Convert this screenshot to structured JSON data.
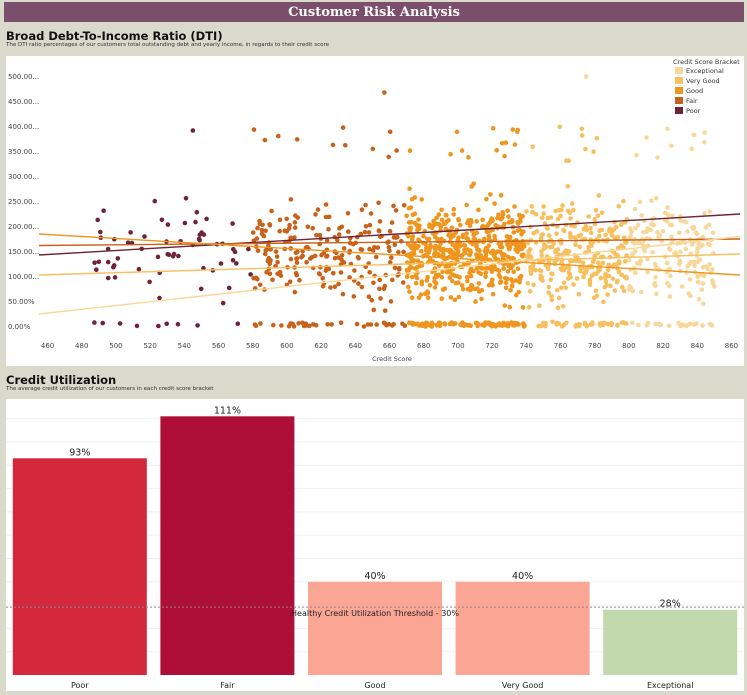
{
  "page": {
    "title": "Customer Risk Analysis"
  },
  "dti": {
    "title": "Broad Debt-To-Income Ratio (DTI)",
    "subtitle": "The DTI ratio percentages of our customers total outstanding debt and yearly income, in regards to their credit score"
  },
  "utilization": {
    "title": "Credit Utilization",
    "subtitle": "The average credit utilization of our customers in each credit score bracket"
  },
  "chart_data": [
    {
      "type": "scatter",
      "title": "Broad Debt-To-Income Ratio (DTI)",
      "xlabel": "Credit Score",
      "ylabel": "",
      "xlim": [
        455,
        865
      ],
      "ylim": [
        -15,
        525
      ],
      "x_ticks": [
        460,
        480,
        500,
        520,
        540,
        560,
        580,
        600,
        620,
        640,
        660,
        680,
        700,
        720,
        740,
        760,
        780,
        800,
        820,
        840,
        860
      ],
      "y_ticks": [
        0,
        50,
        100,
        150,
        200,
        250,
        300,
        350,
        400,
        450,
        500
      ],
      "y_tick_labels": [
        "0.00%",
        "50.00%",
        "100.00...",
        "150.00...",
        "200.00...",
        "250.00...",
        "300.00...",
        "350.00...",
        "400.00...",
        "450.00...",
        "500.00..."
      ],
      "legend": {
        "title": "Credit Score Bracket",
        "placement": "top-right",
        "entries": [
          "Exceptional",
          "Very Good",
          "Good",
          "Fair",
          "Poor"
        ]
      },
      "series": [
        {
          "name": "Exceptional",
          "color": "#f8d89a",
          "x_range": [
            800,
            850
          ],
          "count": 200
        },
        {
          "name": "Very Good",
          "color": "#f7bf5e",
          "x_range": [
            740,
            799
          ],
          "count": 340
        },
        {
          "name": "Good",
          "color": "#ef961f",
          "x_range": [
            670,
            739
          ],
          "count": 620
        },
        {
          "name": "Fair",
          "color": "#c8621a",
          "x_range": [
            580,
            669
          ],
          "count": 260
        },
        {
          "name": "Poor",
          "color": "#6e2436",
          "x_range": [
            487,
            579
          ],
          "count": 70
        }
      ],
      "trend_lines": [
        {
          "name": "Poor",
          "color": "#6e2436",
          "points": [
            [
              455,
              143
            ],
            [
              865,
              225
            ]
          ]
        },
        {
          "name": "Fair",
          "color": "#c8621a",
          "points": [
            [
              455,
              162
            ],
            [
              865,
              175
            ]
          ]
        },
        {
          "name": "Good",
          "color": "#ef961f",
          "points": [
            [
              455,
              185
            ],
            [
              865,
              103
            ]
          ]
        },
        {
          "name": "Very Good",
          "color": "#f7bf5e",
          "points": [
            [
              455,
              103
            ],
            [
              865,
              145
            ]
          ]
        },
        {
          "name": "Exceptional",
          "color": "#f8d89a",
          "points": [
            [
              455,
              25
            ],
            [
              865,
              180
            ]
          ]
        }
      ]
    },
    {
      "type": "bar",
      "title": "Credit Utilization",
      "categories": [
        "Poor",
        "Fair",
        "Good",
        "Very Good",
        "Exceptional"
      ],
      "values": [
        93,
        111,
        40,
        40,
        28
      ],
      "labels": [
        "93%",
        "111%",
        "40%",
        "40%",
        "28%"
      ],
      "colors": [
        "#d3283b",
        "#ad0f38",
        "#fba594",
        "#fba594",
        "#c2d9ae"
      ],
      "ylim": [
        0,
        115
      ],
      "grid": true,
      "reference_line": {
        "value": 30,
        "label": "Healthy Credit Utilization Threshold - 30%"
      }
    }
  ]
}
